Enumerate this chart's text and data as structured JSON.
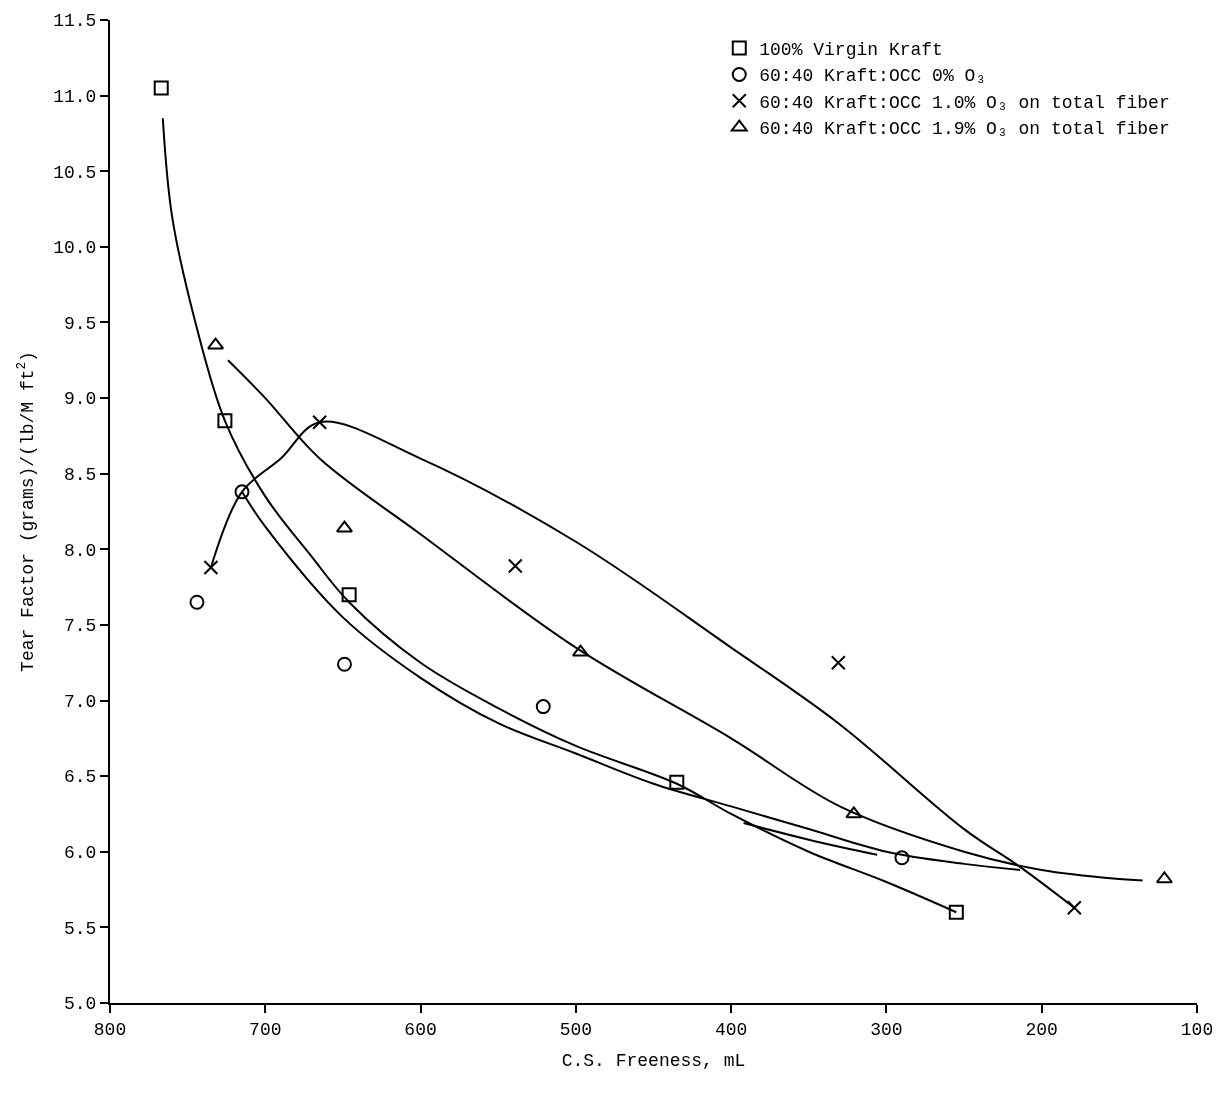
{
  "chart_data": {
    "type": "scatter",
    "xlabel": "C.S. Freeness, mL",
    "ylabel": "Tear Factor (grams)/(lb/M ft$^{2}$)",
    "xlim": [
      800,
      100
    ],
    "xticks": [
      800,
      700,
      600,
      500,
      400,
      300,
      200,
      100
    ],
    "ylim": [
      5.0,
      11.5
    ],
    "yticks": [
      {
        "value": 5.0,
        "label": "5.0"
      },
      {
        "value": 5.5,
        "label": "5.5"
      },
      {
        "value": 6.0,
        "label": "6.0"
      },
      {
        "value": 6.5,
        "label": "6.5"
      },
      {
        "value": 7.0,
        "label": "7.0"
      },
      {
        "value": 7.5,
        "label": "7.5"
      },
      {
        "value": 8.0,
        "label": "8.0"
      },
      {
        "value": 8.5,
        "label": "8.5"
      },
      {
        "value": 9.0,
        "label": "9.0"
      },
      {
        "value": 9.5,
        "label": "9.5"
      },
      {
        "value": 10.0,
        "label": "10.0"
      },
      {
        "value": 10.5,
        "label": "10.5"
      },
      {
        "value": 11.0,
        "label": "11.0"
      },
      {
        "value": 11.5,
        "label": "11.5"
      }
    ],
    "legend": "top right",
    "series": [
      {
        "name": "100% Virgin Kraft",
        "marker": "square",
        "color": "#000000",
        "x": [
          767,
          726,
          646,
          435,
          255
        ],
        "values": [
          11.05,
          8.85,
          7.7,
          6.46,
          5.6
        ]
      },
      {
        "name": "60:40 Kraft:OCC 0% O₃",
        "marker": "circle",
        "color": "#000000",
        "x": [
          744,
          715,
          649,
          521,
          290
        ],
        "values": [
          7.65,
          8.38,
          7.24,
          6.96,
          5.96
        ]
      },
      {
        "name": "60:40 Kraft:OCC 1.0% O₃ on total fiber",
        "marker": "cross",
        "color": "#000000",
        "x": [
          735,
          665,
          539,
          331,
          179
        ],
        "values": [
          7.88,
          8.84,
          7.89,
          7.25,
          5.63
        ]
      },
      {
        "name": "60:40 Kraft:OCC 1.9% O₃ on total fiber",
        "marker": "triangle",
        "color": "#000000",
        "x": [
          732,
          649,
          497,
          321,
          121
        ],
        "values": [
          9.35,
          8.14,
          7.32,
          6.25,
          5.82
        ]
      },
      {
        "type": "line",
        "marker": "none",
        "color": "#000000",
        "x": [
          766,
          760,
          745,
          726,
          700,
          670,
          646,
          600,
          550,
          500,
          435,
          400,
          350,
          300,
          255
        ],
        "values": [
          10.85,
          10.2,
          9.5,
          8.85,
          8.35,
          7.95,
          7.65,
          7.25,
          6.95,
          6.7,
          6.45,
          6.25,
          6.0,
          5.8,
          5.6
        ]
      },
      {
        "type": "line",
        "marker": "none",
        "color": "#000000",
        "x": [
          715,
          700,
          650,
          600,
          550,
          500,
          450,
          400,
          350,
          300,
          250,
          214
        ],
        "values": [
          8.38,
          8.15,
          7.55,
          7.15,
          6.85,
          6.65,
          6.45,
          6.3,
          6.15,
          6.0,
          5.92,
          5.88
        ]
      },
      {
        "type": "line",
        "marker": "none",
        "color": "#000000",
        "x": [
          392,
          350,
          306
        ],
        "values": [
          6.19,
          6.08,
          5.98
        ]
      },
      {
        "type": "line",
        "marker": "none",
        "color": "#000000",
        "x": [
          735,
          715,
          690,
          665,
          600,
          500,
          400,
          331,
          250,
          214,
          179
        ],
        "values": [
          7.88,
          8.38,
          8.6,
          8.84,
          8.6,
          8.05,
          7.35,
          6.85,
          6.15,
          5.9,
          5.63
        ]
      },
      {
        "type": "line",
        "marker": "none",
        "color": "#000000",
        "x": [
          724,
          700,
          665,
          600,
          500,
          400,
          330,
          250,
          200,
          150,
          135
        ],
        "values": [
          9.25,
          9.0,
          8.6,
          8.1,
          7.35,
          6.75,
          6.3,
          6.0,
          5.88,
          5.82,
          5.81
        ]
      }
    ]
  }
}
